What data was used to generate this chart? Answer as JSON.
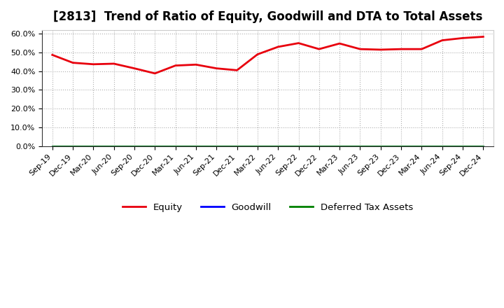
{
  "title": "[2813]  Trend of Ratio of Equity, Goodwill and DTA to Total Assets",
  "x_labels": [
    "Sep-19",
    "Dec-19",
    "Mar-20",
    "Jun-20",
    "Sep-20",
    "Dec-20",
    "Mar-21",
    "Jun-21",
    "Sep-21",
    "Dec-21",
    "Mar-22",
    "Jun-22",
    "Sep-22",
    "Dec-22",
    "Mar-23",
    "Jun-23",
    "Sep-23",
    "Dec-23",
    "Mar-24",
    "Jun-24",
    "Sep-24",
    "Dec-24"
  ],
  "equity": [
    0.487,
    0.445,
    0.437,
    0.44,
    0.415,
    0.388,
    0.43,
    0.435,
    0.415,
    0.405,
    0.49,
    0.53,
    0.55,
    0.518,
    0.548,
    0.518,
    0.515,
    0.518,
    0.518,
    0.565,
    0.577,
    0.584
  ],
  "goodwill": [
    0,
    0,
    0,
    0,
    0,
    0,
    0,
    0,
    0,
    0,
    0,
    0,
    0,
    0,
    0,
    0,
    0,
    0,
    0,
    0,
    0,
    0
  ],
  "deferred_tax_assets": [
    0,
    0,
    0,
    0,
    0,
    0,
    0,
    0,
    0,
    0,
    0,
    0,
    0,
    0,
    0,
    0,
    0,
    0,
    0,
    0,
    0,
    0
  ],
  "equity_color": "#e8000d",
  "goodwill_color": "#0000ff",
  "dta_color": "#008000",
  "ylim": [
    0.0,
    0.62
  ],
  "yticks": [
    0.0,
    0.1,
    0.2,
    0.3,
    0.4,
    0.5,
    0.6
  ],
  "background_color": "#ffffff",
  "plot_bg_color": "#ffffff",
  "grid_color": "#b0b0b0",
  "title_fontsize": 12,
  "legend_labels": [
    "Equity",
    "Goodwill",
    "Deferred Tax Assets"
  ]
}
